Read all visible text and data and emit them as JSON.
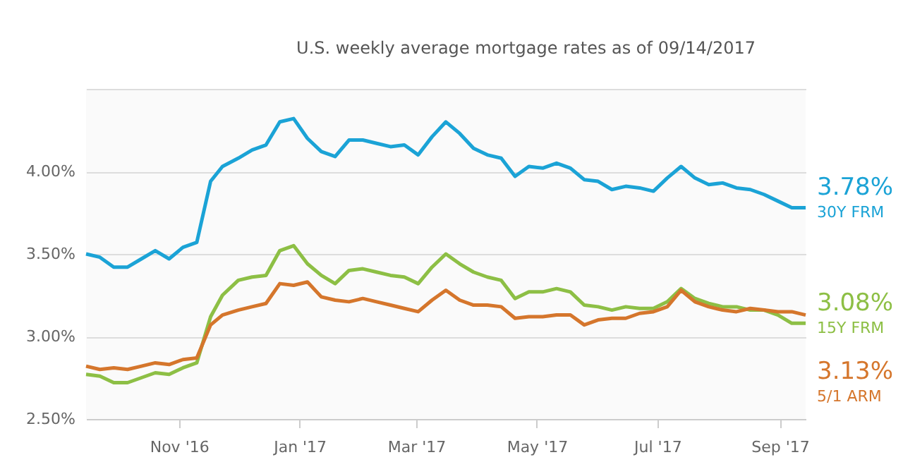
{
  "chart_data": {
    "type": "line",
    "subtitle": "U.S. weekly average mortgage rates as of 09/14/2017",
    "x": [
      "2016-09-15",
      "2016-09-22",
      "2016-09-29",
      "2016-10-06",
      "2016-10-13",
      "2016-10-20",
      "2016-10-27",
      "2016-11-03",
      "2016-11-10",
      "2016-11-17",
      "2016-11-23",
      "2016-12-01",
      "2016-12-08",
      "2016-12-15",
      "2016-12-22",
      "2016-12-29",
      "2017-01-05",
      "2017-01-12",
      "2017-01-19",
      "2017-01-26",
      "2017-02-02",
      "2017-02-09",
      "2017-02-16",
      "2017-02-23",
      "2017-03-02",
      "2017-03-09",
      "2017-03-16",
      "2017-03-23",
      "2017-03-30",
      "2017-04-06",
      "2017-04-13",
      "2017-04-20",
      "2017-04-27",
      "2017-05-04",
      "2017-05-11",
      "2017-05-18",
      "2017-05-25",
      "2017-06-01",
      "2017-06-08",
      "2017-06-15",
      "2017-06-22",
      "2017-06-29",
      "2017-07-06",
      "2017-07-13",
      "2017-07-20",
      "2017-07-27",
      "2017-08-03",
      "2017-08-10",
      "2017-08-17",
      "2017-08-24",
      "2017-08-31",
      "2017-09-07",
      "2017-09-14"
    ],
    "series": [
      {
        "name": "30Y FRM",
        "color": "#1ba3d6",
        "values": [
          3.5,
          3.48,
          3.42,
          3.42,
          3.47,
          3.52,
          3.47,
          3.54,
          3.57,
          3.94,
          4.03,
          4.08,
          4.13,
          4.16,
          4.3,
          4.32,
          4.2,
          4.12,
          4.09,
          4.19,
          4.19,
          4.17,
          4.15,
          4.16,
          4.1,
          4.21,
          4.3,
          4.23,
          4.14,
          4.1,
          4.08,
          3.97,
          4.03,
          4.02,
          4.05,
          4.02,
          3.95,
          3.94,
          3.89,
          3.91,
          3.9,
          3.88,
          3.96,
          4.03,
          3.96,
          3.92,
          3.93,
          3.9,
          3.89,
          3.86,
          3.82,
          3.78,
          3.78
        ],
        "value_labels": [
          null,
          null,
          null,
          null,
          null,
          null,
          null,
          null,
          null,
          null,
          null,
          null,
          null,
          null,
          null,
          null,
          null,
          null,
          null,
          null,
          null,
          null,
          null,
          null,
          null,
          null,
          null,
          null,
          null,
          null,
          null,
          null,
          null,
          null,
          null,
          null,
          null,
          null,
          null,
          null,
          null,
          null,
          null,
          null,
          null,
          null,
          null,
          null,
          null,
          null,
          null,
          null,
          "3.78%"
        ]
      },
      {
        "name": "15Y FRM",
        "color": "#8dbf45",
        "values": [
          2.77,
          2.76,
          2.72,
          2.72,
          2.75,
          2.78,
          2.77,
          2.81,
          2.84,
          3.12,
          3.25,
          3.34,
          3.36,
          3.37,
          3.52,
          3.55,
          3.44,
          3.37,
          3.32,
          3.4,
          3.41,
          3.39,
          3.37,
          3.36,
          3.32,
          3.42,
          3.5,
          3.44,
          3.39,
          3.36,
          3.34,
          3.23,
          3.27,
          3.27,
          3.29,
          3.27,
          3.19,
          3.18,
          3.16,
          3.18,
          3.17,
          3.17,
          3.21,
          3.29,
          3.23,
          3.2,
          3.18,
          3.18,
          3.16,
          3.16,
          3.13,
          3.08,
          3.08
        ],
        "value_labels": [
          null,
          null,
          null,
          null,
          null,
          null,
          null,
          null,
          null,
          null,
          null,
          null,
          null,
          null,
          null,
          null,
          null,
          null,
          null,
          null,
          null,
          null,
          null,
          null,
          null,
          null,
          null,
          null,
          null,
          null,
          null,
          null,
          null,
          null,
          null,
          null,
          null,
          null,
          null,
          null,
          null,
          null,
          null,
          null,
          null,
          null,
          null,
          null,
          null,
          null,
          null,
          null,
          "3.08%"
        ]
      },
      {
        "name": "5/1 ARM",
        "color": "#d5762c",
        "values": [
          2.82,
          2.8,
          2.81,
          2.8,
          2.82,
          2.84,
          2.83,
          2.86,
          2.87,
          3.07,
          3.13,
          3.16,
          3.18,
          3.2,
          3.32,
          3.31,
          3.33,
          3.24,
          3.22,
          3.21,
          3.23,
          3.21,
          3.19,
          3.17,
          3.15,
          3.22,
          3.28,
          3.22,
          3.19,
          3.19,
          3.18,
          3.11,
          3.12,
          3.12,
          3.13,
          3.13,
          3.07,
          3.1,
          3.11,
          3.11,
          3.14,
          3.15,
          3.18,
          3.28,
          3.21,
          3.18,
          3.16,
          3.15,
          3.17,
          3.16,
          3.15,
          3.15,
          3.13
        ],
        "value_labels": [
          null,
          null,
          null,
          null,
          null,
          null,
          null,
          null,
          null,
          null,
          null,
          null,
          null,
          null,
          null,
          null,
          null,
          null,
          null,
          null,
          null,
          null,
          null,
          null,
          null,
          null,
          null,
          null,
          null,
          null,
          null,
          null,
          null,
          null,
          null,
          null,
          null,
          null,
          null,
          null,
          null,
          null,
          null,
          null,
          null,
          null,
          null,
          null,
          null,
          null,
          null,
          null,
          "3.13%"
        ]
      }
    ],
    "xlim": [
      "2016-09-15",
      "2017-09-14"
    ],
    "xticks": [
      {
        "value": "2016-11-01",
        "label": "Nov '16"
      },
      {
        "value": "2017-01-01",
        "label": "Jan '17"
      },
      {
        "value": "2017-03-01",
        "label": "Mar '17"
      },
      {
        "value": "2017-05-01",
        "label": "May '17"
      },
      {
        "value": "2017-07-01",
        "label": "Jul '17"
      },
      {
        "value": "2017-09-01",
        "label": "Sep '17"
      }
    ],
    "ylim": [
      2.5,
      4.5
    ],
    "yticks": [
      {
        "value": 2.5,
        "label": "2.50%"
      },
      {
        "value": 3.0,
        "label": "3.00%"
      },
      {
        "value": 3.5,
        "label": "3.50%"
      },
      {
        "value": 4.0,
        "label": "4.00%"
      },
      {
        "value": 4.5,
        "label": null
      }
    ],
    "grid": "y",
    "legend": false,
    "marker": "none",
    "line_style": "solid"
  }
}
